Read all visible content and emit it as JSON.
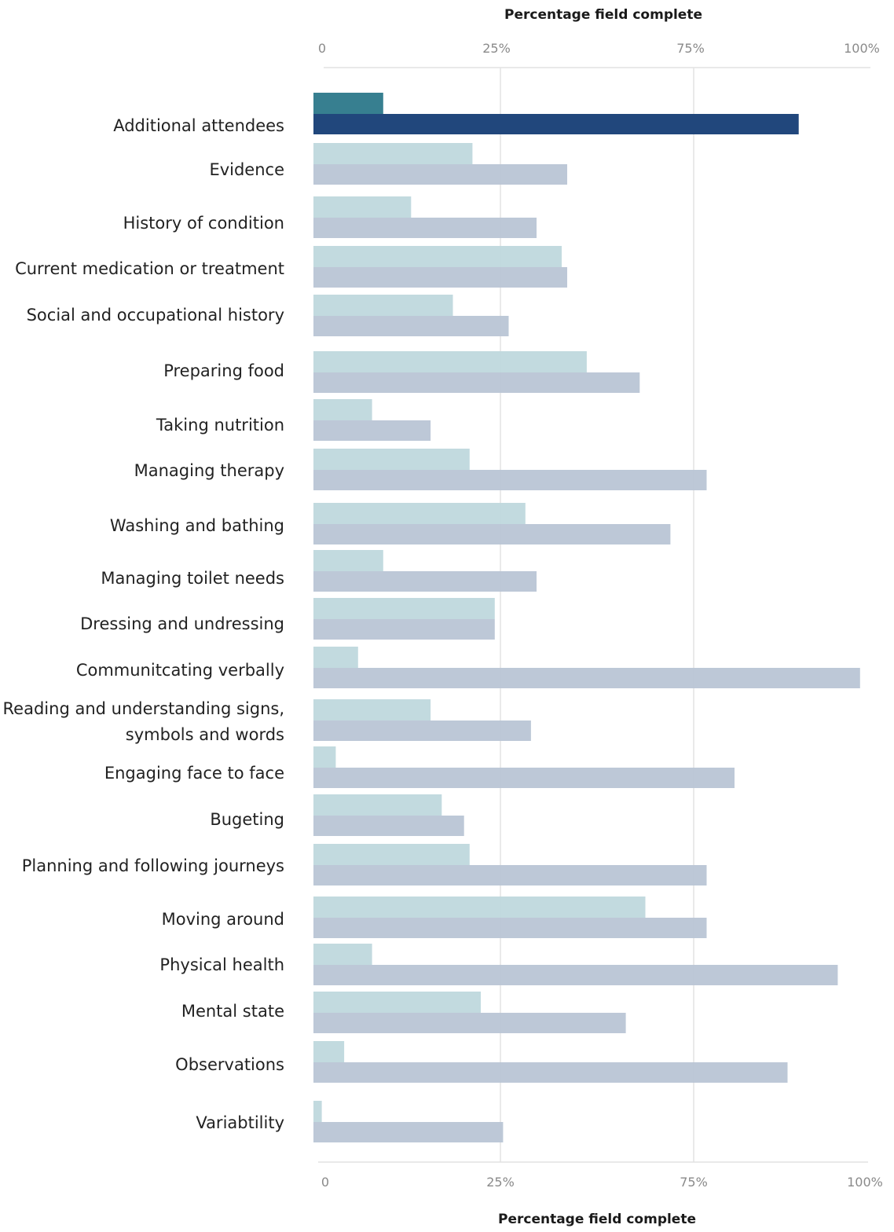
{
  "chart_data": {
    "type": "bar",
    "orientation": "horizontal",
    "xlabel": "Percentage field complete",
    "xlim": [
      0,
      100
    ],
    "x_tick_labels": [
      "0",
      "25%",
      "75%",
      "100%"
    ],
    "grid": true,
    "categories": [
      [
        "Additional attendees"
      ],
      [
        "Evidence"
      ],
      [
        "History of condition"
      ],
      [
        "Current medication or treatment"
      ],
      [
        "Social and occupational history"
      ],
      [
        "Preparing food"
      ],
      [
        "Taking nutrition"
      ],
      [
        "Managing therapy"
      ],
      [
        "Washing and bathing"
      ],
      [
        "Managing toilet needs"
      ],
      [
        "Dressing and undressing"
      ],
      [
        "Communitcating verbally"
      ],
      [
        "Reading and understanding signs,",
        "symbols and words"
      ],
      [
        "Engaging face to face"
      ],
      [
        "Bugeting"
      ],
      [
        "Planning and following journeys"
      ],
      [
        "Moving around"
      ],
      [
        "Physical health"
      ],
      [
        "Mental state"
      ],
      [
        "Observations"
      ],
      [
        "Variabtility"
      ]
    ],
    "series": [
      {
        "values": [
          12.5,
          28.5,
          17.5,
          44.5,
          25,
          49,
          10.5,
          28,
          38,
          12.5,
          32.5,
          8,
          21,
          4,
          23,
          28,
          59.5,
          10.5,
          30,
          5.5,
          1.5
        ]
      },
      {
        "values": [
          87,
          45.5,
          40,
          45.5,
          35,
          58.5,
          21,
          70.5,
          64,
          40,
          32.5,
          98,
          39,
          75.5,
          27,
          70.5,
          70.5,
          94,
          56,
          85,
          34
        ]
      }
    ],
    "highlighted_category": "Additional attendees",
    "colors": {
      "series1": "#bfd8dd",
      "series2": "#b9c5d5",
      "series1_highlight": "#377f90",
      "series2_highlight": "#21477c",
      "grid": "#d4d4d4",
      "tick_text": "#8a8a8a"
    }
  }
}
